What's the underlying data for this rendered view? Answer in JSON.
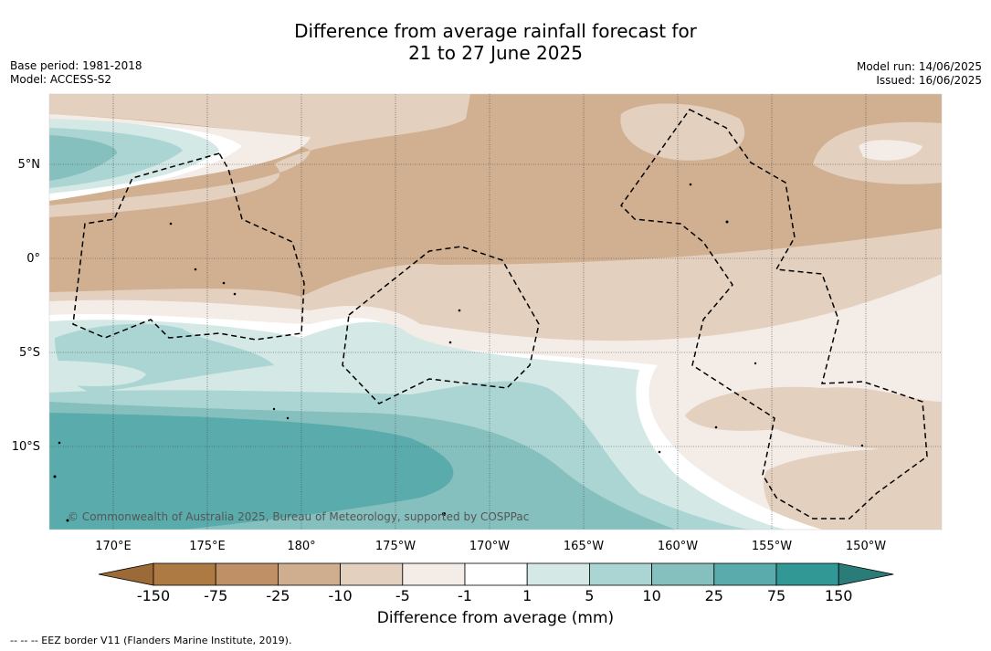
{
  "title_line1": "Difference from average rainfall forecast for",
  "title_line2": "21 to 27 June 2025",
  "base_period": "Base period: 1981-2018",
  "model": "Model: ACCESS-S2",
  "model_run": "Model run: 14/06/2025",
  "issued": "Issued: 16/06/2025",
  "copyright": "© Commonwealth of Australia 2025, Bureau of Meteorology, supported by COSPPac",
  "lon_labels": [
    "170°E",
    "175°E",
    "180°",
    "175°W",
    "170°W",
    "165°W",
    "160°W",
    "155°W",
    "150°W"
  ],
  "lat_labels": [
    "5°N",
    "0°",
    "5°S",
    "10°S"
  ],
  "colorbar": {
    "ticks": [
      "-150",
      "-75",
      "-25",
      "-10",
      "-5",
      "-1",
      "1",
      "5",
      "10",
      "25",
      "75",
      "150"
    ],
    "colors": [
      "#9c6a37",
      "#ae7a44",
      "#bf9066",
      "#cfad8f",
      "#e3d0be",
      "#f4ece6",
      "#ffffff",
      "#d4e8e6",
      "#aad5d3",
      "#85c0be",
      "#5aabab",
      "#329895",
      "#2a7c79"
    ],
    "label": "Difference from average (mm)"
  },
  "eez_legend": "-- -- -- EEZ border V11 (Flanders Marine Institute, 2019)."
}
